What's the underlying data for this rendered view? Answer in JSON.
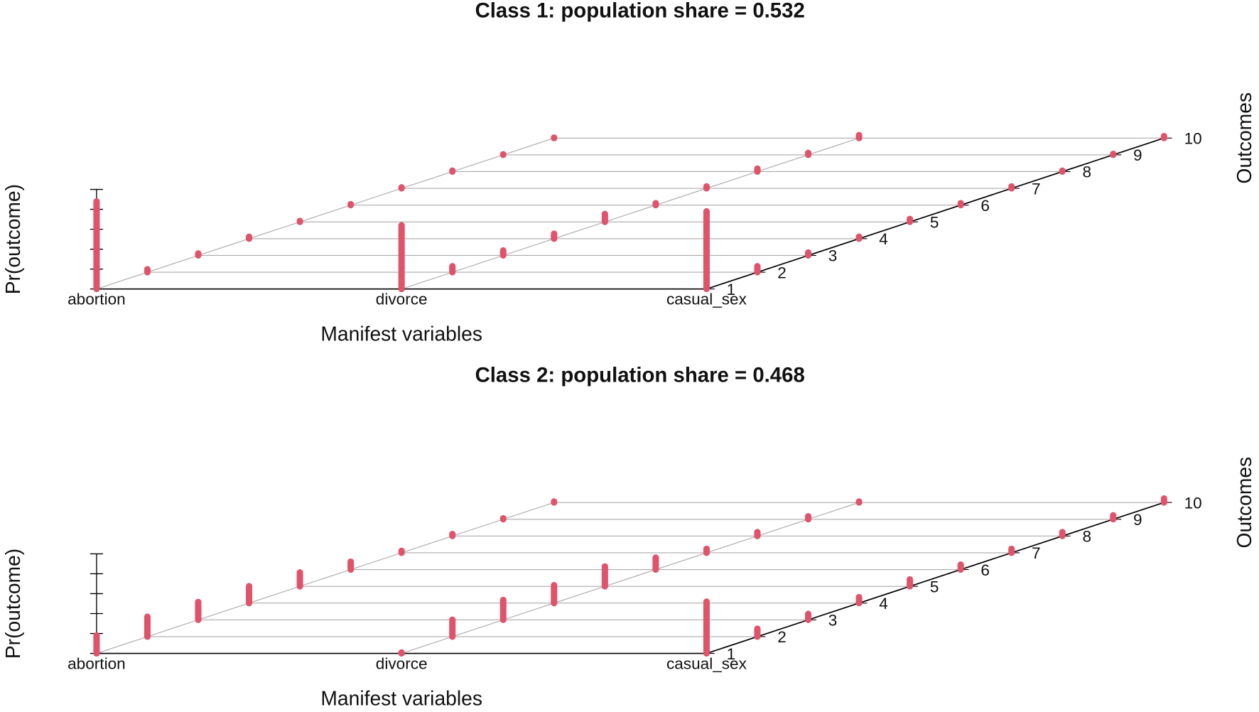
{
  "chart_data": [
    {
      "type": "bar3d",
      "title": "Class 1: population share = 0.532",
      "categories": [
        "abortion",
        "divorce",
        "casual_sex"
      ],
      "outcomes": [
        1,
        2,
        3,
        4,
        5,
        6,
        7,
        8,
        9,
        10
      ],
      "values": [
        [
          0.88,
          0.03,
          0.02,
          0.02,
          0.01,
          0.01,
          0.01,
          0.01,
          0.005,
          0.005
        ],
        [
          0.64,
          0.06,
          0.05,
          0.05,
          0.08,
          0.02,
          0.02,
          0.03,
          0.02,
          0.03
        ],
        [
          0.78,
          0.06,
          0.03,
          0.02,
          0.03,
          0.02,
          0.02,
          0.01,
          0.01,
          0.02
        ]
      ],
      "color": "#df536b",
      "xlabel": "Manifest variables",
      "ylabel": "Outcomes",
      "zlabel": "Pr(outcome)",
      "zlim": [
        0,
        1
      ],
      "zticks": [
        0,
        0.2,
        0.4,
        0.6,
        0.8,
        1
      ]
    },
    {
      "type": "bar3d",
      "title": "Class 2: population share = 0.468",
      "categories": [
        "abortion",
        "divorce",
        "casual_sex"
      ],
      "outcomes": [
        1,
        2,
        3,
        4,
        5,
        6,
        7,
        8,
        9,
        10
      ],
      "values": [
        [
          0.18,
          0.2,
          0.18,
          0.17,
          0.14,
          0.08,
          0.02,
          0.02,
          0.01,
          0.01
        ],
        [
          0.01,
          0.17,
          0.2,
          0.18,
          0.2,
          0.12,
          0.04,
          0.04,
          0.03,
          0.01
        ],
        [
          0.52,
          0.08,
          0.06,
          0.06,
          0.07,
          0.05,
          0.04,
          0.04,
          0.04,
          0.04
        ]
      ],
      "color": "#df536b",
      "xlabel": "Manifest variables",
      "ylabel": "Outcomes",
      "zlabel": "Pr(outcome)",
      "zlim": [
        0,
        1
      ],
      "zticks": [
        0,
        0.2,
        0.4,
        0.6,
        0.8,
        1
      ]
    }
  ]
}
